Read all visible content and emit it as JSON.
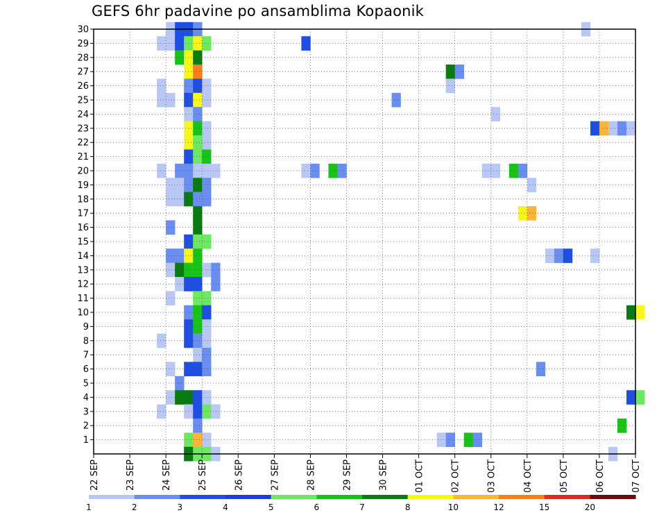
{
  "chart_data": {
    "type": "heatmap",
    "title": "GEFS 6hr padavine po ansamblima Kopaonik",
    "x_tick_labels": [
      "22 SEP",
      "23 SEP",
      "24 SEP",
      "25 SEP",
      "26 SEP",
      "27 SEP",
      "28 SEP",
      "29 SEP",
      "30 SEP",
      "01 OCT",
      "02 OCT",
      "03 OCT",
      "04 OCT",
      "05 OCT",
      "06 OCT",
      "07 OCT"
    ],
    "y_tick_labels": [
      "1",
      "2",
      "3",
      "4",
      "5",
      "6",
      "7",
      "8",
      "9",
      "10",
      "11",
      "12",
      "13",
      "14",
      "15",
      "16",
      "17",
      "18",
      "19",
      "20",
      "21",
      "22",
      "23",
      "24",
      "25",
      "26",
      "27",
      "28",
      "29",
      "30"
    ],
    "x_range_days": [
      0,
      15
    ],
    "y_range": [
      0,
      30
    ],
    "grid": true,
    "colorbar": {
      "labels": [
        "1",
        "2",
        "3",
        "4",
        "5",
        "6",
        "7",
        "8",
        "10",
        "12",
        "15",
        "20"
      ],
      "colors": [
        "#b9c7f5",
        "#6a8ef0",
        "#1e4fe0",
        "#1a3fd6",
        "#6ee861",
        "#19c219",
        "#0a7a12",
        "#f7f71c",
        "#fbb53a",
        "#f77f1a",
        "#d7301f",
        "#6b0a0a"
      ]
    },
    "series_colors": {
      "1": "#b9c7f5",
      "2": "#6a8ef0",
      "3": "#1e4fe0",
      "4": "#6ee861",
      "5": "#19c219",
      "6": "#0a7a12",
      "7": "#f7f71c",
      "8": "#fbb53a",
      "9": "#f77f1a"
    },
    "cells": [
      [
        2.0,
        30,
        1
      ],
      [
        2.25,
        30,
        3
      ],
      [
        2.5,
        30,
        3
      ],
      [
        2.75,
        30,
        2
      ],
      [
        13.5,
        30,
        1
      ],
      [
        1.75,
        29,
        1
      ],
      [
        2.0,
        29,
        1
      ],
      [
        2.25,
        29,
        3
      ],
      [
        2.5,
        29,
        4
      ],
      [
        2.75,
        29,
        7
      ],
      [
        3.0,
        29,
        4
      ],
      [
        5.75,
        29,
        3
      ],
      [
        2.25,
        28,
        5
      ],
      [
        2.5,
        28,
        7
      ],
      [
        2.75,
        28,
        6
      ],
      [
        2.5,
        27,
        7
      ],
      [
        2.75,
        27,
        9
      ],
      [
        9.75,
        27,
        6
      ],
      [
        10.0,
        27,
        2
      ],
      [
        1.75,
        26,
        1
      ],
      [
        2.5,
        26,
        2
      ],
      [
        2.75,
        26,
        3
      ],
      [
        3.0,
        26,
        1
      ],
      [
        9.75,
        26,
        1
      ],
      [
        1.75,
        25,
        1
      ],
      [
        2.0,
        25,
        1
      ],
      [
        2.5,
        25,
        3
      ],
      [
        2.75,
        25,
        7
      ],
      [
        3.0,
        25,
        1
      ],
      [
        8.25,
        25,
        2
      ],
      [
        2.5,
        24,
        1
      ],
      [
        2.75,
        24,
        2
      ],
      [
        11.0,
        24,
        1
      ],
      [
        2.5,
        23,
        7
      ],
      [
        2.75,
        23,
        5
      ],
      [
        3.0,
        23,
        1
      ],
      [
        13.75,
        23,
        3
      ],
      [
        14.0,
        23,
        8
      ],
      [
        14.25,
        23,
        1
      ],
      [
        14.5,
        23,
        2
      ],
      [
        14.75,
        23,
        1
      ],
      [
        2.5,
        22,
        7
      ],
      [
        2.75,
        22,
        4
      ],
      [
        3.0,
        22,
        1
      ],
      [
        2.5,
        21,
        3
      ],
      [
        2.75,
        21,
        4
      ],
      [
        3.0,
        21,
        5
      ],
      [
        1.75,
        20,
        1
      ],
      [
        2.25,
        20,
        2
      ],
      [
        2.5,
        20,
        2
      ],
      [
        2.75,
        20,
        1
      ],
      [
        3.0,
        20,
        1
      ],
      [
        3.25,
        20,
        1
      ],
      [
        5.75,
        20,
        1
      ],
      [
        6.0,
        20,
        2
      ],
      [
        6.5,
        20,
        5
      ],
      [
        6.75,
        20,
        2
      ],
      [
        10.75,
        20,
        1
      ],
      [
        11.0,
        20,
        1
      ],
      [
        11.5,
        20,
        5
      ],
      [
        11.75,
        20,
        2
      ],
      [
        2.0,
        19,
        1
      ],
      [
        2.25,
        19,
        1
      ],
      [
        2.5,
        19,
        2
      ],
      [
        2.75,
        19,
        6
      ],
      [
        3.0,
        19,
        2
      ],
      [
        12.0,
        19,
        1
      ],
      [
        2.0,
        18,
        1
      ],
      [
        2.25,
        18,
        1
      ],
      [
        2.5,
        18,
        6
      ],
      [
        2.75,
        18,
        2
      ],
      [
        3.0,
        18,
        2
      ],
      [
        2.75,
        17,
        6
      ],
      [
        11.75,
        17,
        7
      ],
      [
        12.0,
        17,
        8
      ],
      [
        2.0,
        16,
        2
      ],
      [
        2.75,
        16,
        6
      ],
      [
        2.5,
        15,
        3
      ],
      [
        2.75,
        15,
        4
      ],
      [
        3.0,
        15,
        4
      ],
      [
        2.0,
        14,
        2
      ],
      [
        2.25,
        14,
        2
      ],
      [
        2.5,
        14,
        7
      ],
      [
        2.75,
        14,
        5
      ],
      [
        12.5,
        14,
        1
      ],
      [
        12.75,
        14,
        2
      ],
      [
        13.0,
        14,
        3
      ],
      [
        13.75,
        14,
        1
      ],
      [
        2.0,
        13,
        1
      ],
      [
        2.25,
        13,
        6
      ],
      [
        2.5,
        13,
        5
      ],
      [
        2.75,
        13,
        5
      ],
      [
        3.0,
        13,
        1
      ],
      [
        3.25,
        13,
        2
      ],
      [
        2.25,
        12,
        1
      ],
      [
        2.5,
        12,
        3
      ],
      [
        2.75,
        12,
        3
      ],
      [
        3.25,
        12,
        2
      ],
      [
        2.0,
        11,
        1
      ],
      [
        2.75,
        11,
        4
      ],
      [
        3.0,
        11,
        4
      ],
      [
        2.5,
        10,
        2
      ],
      [
        2.75,
        10,
        5
      ],
      [
        3.0,
        10,
        3
      ],
      [
        14.75,
        10,
        6
      ],
      [
        15.0,
        10,
        7
      ],
      [
        2.5,
        9,
        3
      ],
      [
        2.75,
        9,
        5
      ],
      [
        3.0,
        9,
        1
      ],
      [
        1.75,
        8,
        1
      ],
      [
        2.5,
        8,
        3
      ],
      [
        2.75,
        8,
        2
      ],
      [
        3.0,
        8,
        1
      ],
      [
        2.75,
        7,
        1
      ],
      [
        3.0,
        7,
        2
      ],
      [
        2.0,
        6,
        1
      ],
      [
        2.5,
        6,
        3
      ],
      [
        2.75,
        6,
        3
      ],
      [
        3.0,
        6,
        2
      ],
      [
        12.25,
        6,
        2
      ],
      [
        2.25,
        5,
        2
      ],
      [
        2.0,
        4,
        1
      ],
      [
        2.25,
        4,
        6
      ],
      [
        2.5,
        4,
        6
      ],
      [
        2.75,
        4,
        3
      ],
      [
        3.0,
        4,
        1
      ],
      [
        14.75,
        4,
        3
      ],
      [
        15.0,
        4,
        4
      ],
      [
        1.75,
        3,
        1
      ],
      [
        2.5,
        3,
        1
      ],
      [
        2.75,
        3,
        3
      ],
      [
        3.0,
        3,
        4
      ],
      [
        3.25,
        3,
        1
      ],
      [
        2.75,
        2,
        2
      ],
      [
        14.5,
        2,
        5
      ],
      [
        2.5,
        1,
        4
      ],
      [
        2.75,
        1,
        8
      ],
      [
        3.0,
        1,
        1
      ],
      [
        9.5,
        1,
        1
      ],
      [
        9.75,
        1,
        2
      ],
      [
        10.25,
        1,
        5
      ],
      [
        10.5,
        1,
        2
      ],
      [
        2.5,
        0,
        6
      ],
      [
        2.75,
        0,
        4
      ],
      [
        3.0,
        0,
        4
      ],
      [
        3.25,
        0,
        1
      ],
      [
        14.25,
        0,
        1
      ]
    ]
  }
}
